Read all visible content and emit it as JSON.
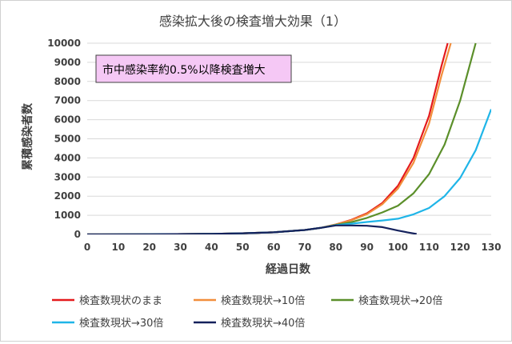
{
  "chart_data": {
    "type": "line",
    "title": "感染拡大後の検査増大効果（1）",
    "xlabel": "経過日数",
    "ylabel": "累積感染者数",
    "xlim": [
      0,
      130
    ],
    "ylim": [
      0,
      10000
    ],
    "x_ticks": [
      0,
      10,
      20,
      30,
      40,
      50,
      60,
      70,
      80,
      90,
      100,
      110,
      120,
      130
    ],
    "y_ticks": [
      0,
      1000,
      2000,
      3000,
      4000,
      5000,
      6000,
      7000,
      8000,
      9000,
      10000
    ],
    "grid": "horizontal",
    "legend_position": "bottom",
    "annotation": "市中感染率約0.5%以降検査増大",
    "series": [
      {
        "name": "検査数現状のまま",
        "color": "#e41a1c",
        "points": [
          [
            0,
            0
          ],
          [
            20,
            5
          ],
          [
            40,
            30
          ],
          [
            50,
            60
          ],
          [
            60,
            110
          ],
          [
            70,
            230
          ],
          [
            75,
            340
          ],
          [
            80,
            520
          ],
          [
            85,
            760
          ],
          [
            90,
            1100
          ],
          [
            95,
            1650
          ],
          [
            100,
            2550
          ],
          [
            105,
            4000
          ],
          [
            110,
            6200
          ],
          [
            114,
            8800
          ],
          [
            116,
            10000
          ]
        ]
      },
      {
        "name": "検査数現状→10倍",
        "color": "#f28e3b",
        "points": [
          [
            0,
            0
          ],
          [
            20,
            5
          ],
          [
            40,
            30
          ],
          [
            50,
            60
          ],
          [
            60,
            110
          ],
          [
            70,
            230
          ],
          [
            75,
            340
          ],
          [
            80,
            520
          ],
          [
            85,
            740
          ],
          [
            90,
            1060
          ],
          [
            95,
            1580
          ],
          [
            100,
            2400
          ],
          [
            105,
            3750
          ],
          [
            110,
            5800
          ],
          [
            114,
            8300
          ],
          [
            117,
            10000
          ]
        ]
      },
      {
        "name": "検査数現状→20倍",
        "color": "#5b8f2a",
        "points": [
          [
            0,
            0
          ],
          [
            20,
            5
          ],
          [
            40,
            30
          ],
          [
            50,
            60
          ],
          [
            60,
            110
          ],
          [
            70,
            230
          ],
          [
            75,
            340
          ],
          [
            80,
            500
          ],
          [
            85,
            640
          ],
          [
            90,
            860
          ],
          [
            95,
            1150
          ],
          [
            100,
            1500
          ],
          [
            105,
            2150
          ],
          [
            110,
            3150
          ],
          [
            115,
            4700
          ],
          [
            120,
            7000
          ],
          [
            125,
            10000
          ]
        ]
      },
      {
        "name": "検査数現状→30倍",
        "color": "#1fb5e8",
        "points": [
          [
            0,
            0
          ],
          [
            20,
            5
          ],
          [
            40,
            30
          ],
          [
            50,
            60
          ],
          [
            60,
            110
          ],
          [
            70,
            230
          ],
          [
            75,
            340
          ],
          [
            80,
            480
          ],
          [
            85,
            560
          ],
          [
            90,
            650
          ],
          [
            95,
            730
          ],
          [
            100,
            820
          ],
          [
            105,
            1050
          ],
          [
            110,
            1380
          ],
          [
            115,
            2000
          ],
          [
            120,
            2950
          ],
          [
            125,
            4400
          ],
          [
            130,
            6550
          ]
        ]
      },
      {
        "name": "検査数現状→40倍",
        "color": "#14215c",
        "points": [
          [
            0,
            0
          ],
          [
            20,
            5
          ],
          [
            40,
            30
          ],
          [
            50,
            60
          ],
          [
            60,
            110
          ],
          [
            70,
            230
          ],
          [
            75,
            340
          ],
          [
            80,
            470
          ],
          [
            85,
            470
          ],
          [
            90,
            450
          ],
          [
            95,
            380
          ],
          [
            100,
            200
          ],
          [
            103,
            110
          ],
          [
            106,
            20
          ]
        ]
      }
    ]
  }
}
